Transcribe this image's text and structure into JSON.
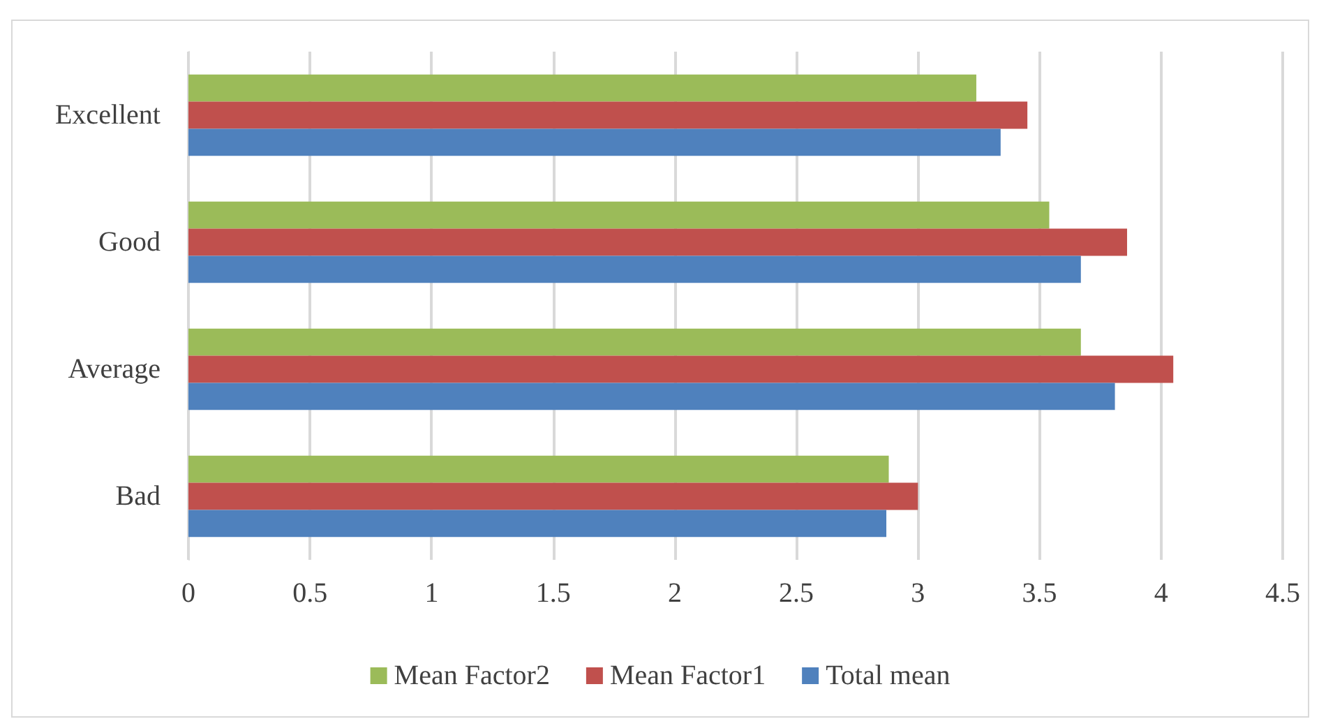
{
  "chart_data": {
    "type": "bar",
    "orientation": "horizontal",
    "categories": [
      "Excellent",
      "Good",
      "Average",
      "Bad"
    ],
    "series": [
      {
        "name": "Mean Factor2",
        "color": "#9bbb59",
        "values": [
          3.24,
          3.54,
          3.67,
          2.88
        ]
      },
      {
        "name": "Mean Factor1",
        "color": "#c0504d",
        "values": [
          3.45,
          3.86,
          4.05,
          3.0
        ]
      },
      {
        "name": "Total mean",
        "color": "#4f81bd",
        "values": [
          3.34,
          3.67,
          3.81,
          2.87
        ]
      }
    ],
    "xlim": [
      0,
      4.5
    ],
    "xticks": [
      0,
      0.5,
      1,
      1.5,
      2,
      2.5,
      3,
      3.5,
      4,
      4.5
    ],
    "grid": "x",
    "legend": "bottom"
  }
}
